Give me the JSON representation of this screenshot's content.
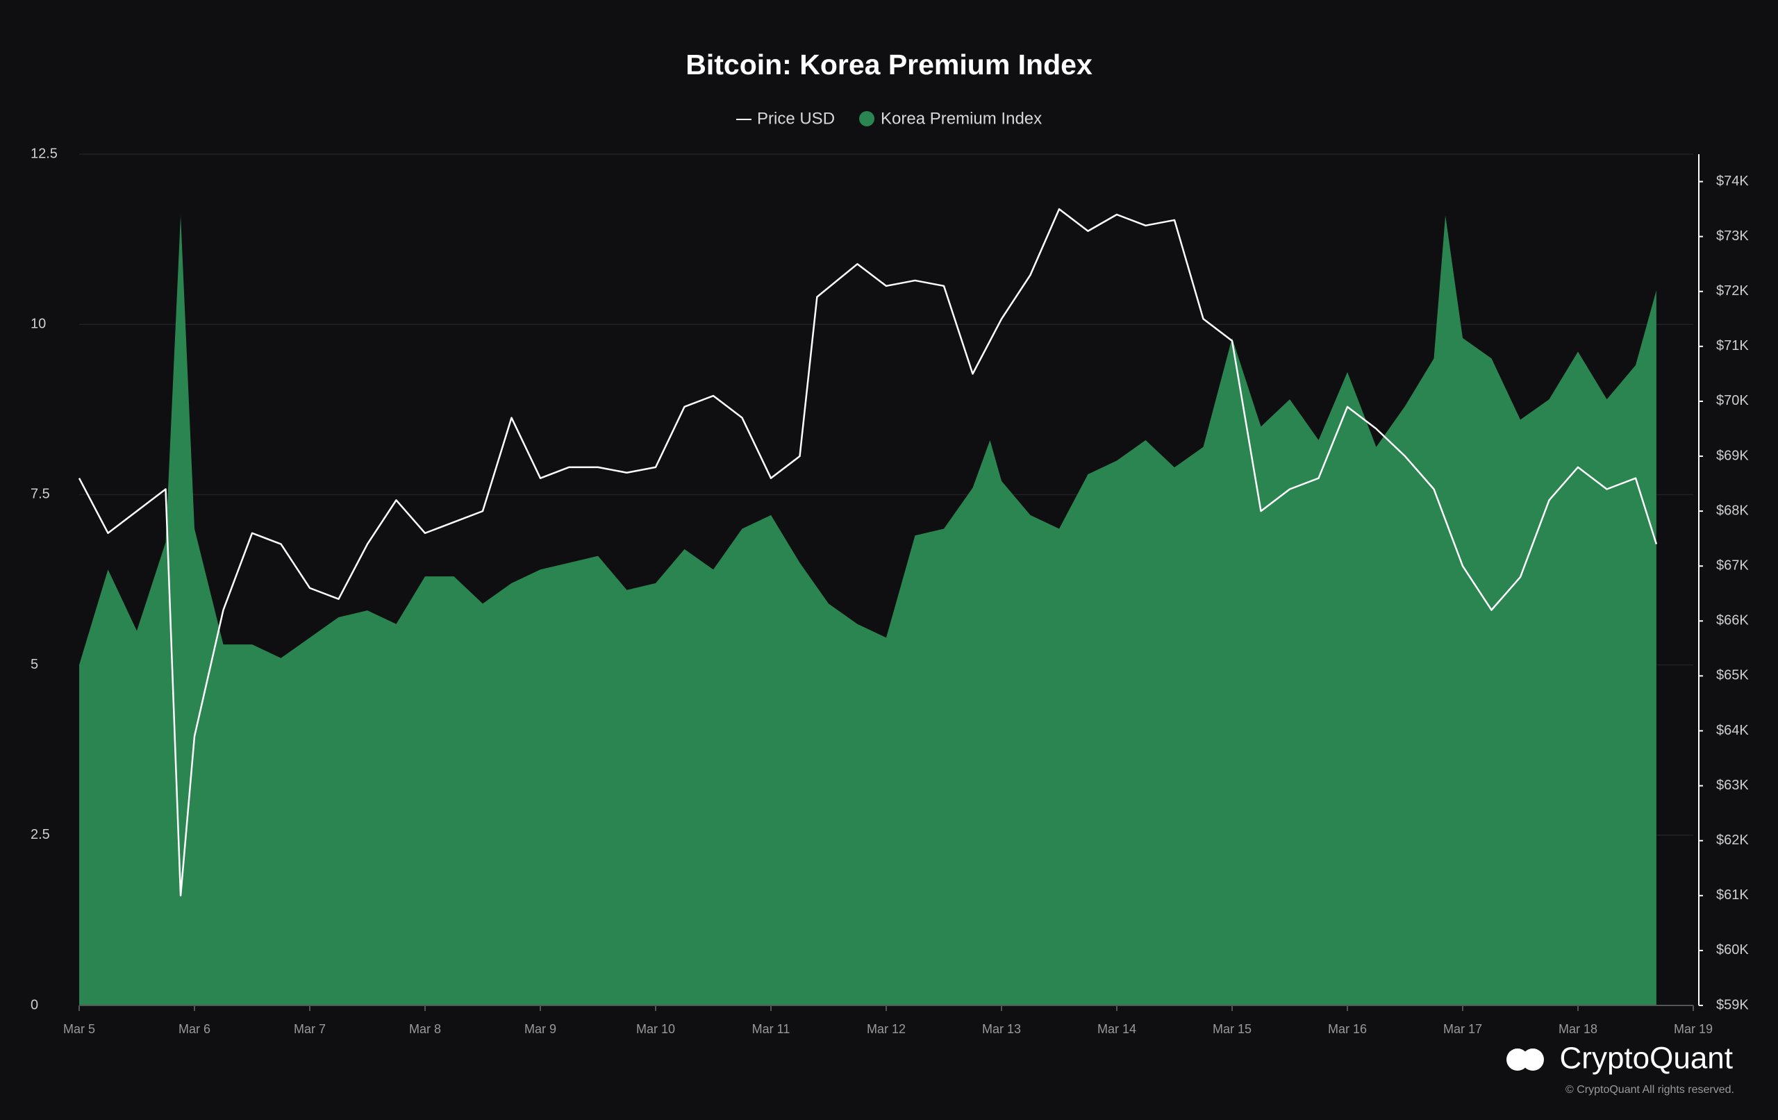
{
  "chart_data": {
    "type": "line",
    "title": "Bitcoin: Korea Premium Index",
    "xlim": [
      5,
      19
    ],
    "xticks": [
      {
        "value": 5,
        "label": "Mar 5"
      },
      {
        "value": 6,
        "label": "Mar 6"
      },
      {
        "value": 7,
        "label": "Mar 7"
      },
      {
        "value": 8,
        "label": "Mar 8"
      },
      {
        "value": 9,
        "label": "Mar 9"
      },
      {
        "value": 10,
        "label": "Mar 10"
      },
      {
        "value": 11,
        "label": "Mar 11"
      },
      {
        "value": 12,
        "label": "Mar 12"
      },
      {
        "value": 13,
        "label": "Mar 13"
      },
      {
        "value": 14,
        "label": "Mar 14"
      },
      {
        "value": 15,
        "label": "Mar 15"
      },
      {
        "value": 16,
        "label": "Mar 16"
      },
      {
        "value": 17,
        "label": "Mar 17"
      },
      {
        "value": 18,
        "label": "Mar 18"
      },
      {
        "value": 19,
        "label": "Mar 19"
      }
    ],
    "ylim": [
      0,
      12.5
    ],
    "yticks": [
      0,
      2.5,
      5,
      7.5,
      10,
      12.5
    ],
    "y2lim": [
      59,
      74.5
    ],
    "y2ticks": [
      {
        "value": 59,
        "label": "$59K"
      },
      {
        "value": 60,
        "label": "$60K"
      },
      {
        "value": 61,
        "label": "$61K"
      },
      {
        "value": 62,
        "label": "$62K"
      },
      {
        "value": 63,
        "label": "$63K"
      },
      {
        "value": 64,
        "label": "$64K"
      },
      {
        "value": 65,
        "label": "$65K"
      },
      {
        "value": 66,
        "label": "$66K"
      },
      {
        "value": 67,
        "label": "$67K"
      },
      {
        "value": 68,
        "label": "$68K"
      },
      {
        "value": 69,
        "label": "$69K"
      },
      {
        "value": 70,
        "label": "$70K"
      },
      {
        "value": 71,
        "label": "$71K"
      },
      {
        "value": 72,
        "label": "$72K"
      },
      {
        "value": 73,
        "label": "$73K"
      },
      {
        "value": 74,
        "label": "$74K"
      }
    ],
    "grid": true,
    "series": [
      {
        "name": "Price USD",
        "type": "line",
        "axis": "y2",
        "color": "#ffffff",
        "x": [
          5,
          5.25,
          5.5,
          5.75,
          5.88,
          6,
          6.25,
          6.5,
          6.75,
          7,
          7.25,
          7.5,
          7.75,
          8,
          8.25,
          8.5,
          8.75,
          9,
          9.25,
          9.5,
          9.75,
          10,
          10.25,
          10.5,
          10.75,
          11,
          11.25,
          11.4,
          11.75,
          12,
          12.25,
          12.5,
          12.75,
          13,
          13.25,
          13.5,
          13.75,
          14,
          14.25,
          14.5,
          14.75,
          15,
          15.25,
          15.5,
          15.75,
          16,
          16.25,
          16.5,
          16.75,
          17,
          17.25,
          17.5,
          17.75,
          18,
          18.25,
          18.5,
          18.68
        ],
        "values": [
          68.6,
          67.6,
          68.0,
          68.4,
          61.0,
          63.9,
          66.2,
          67.6,
          67.4,
          66.6,
          66.4,
          67.4,
          68.2,
          67.6,
          67.8,
          68.0,
          69.7,
          68.6,
          68.8,
          68.8,
          68.7,
          68.8,
          69.9,
          70.1,
          69.7,
          68.6,
          69.0,
          71.9,
          72.5,
          72.1,
          72.2,
          72.1,
          70.5,
          71.5,
          72.3,
          73.5,
          73.1,
          73.4,
          73.2,
          73.3,
          71.5,
          71.1,
          68.0,
          68.4,
          68.6,
          69.9,
          69.5,
          69.0,
          68.4,
          67.0,
          66.2,
          66.8,
          68.2,
          68.8,
          68.4,
          68.6,
          67.4
        ]
      },
      {
        "name": "Korea Premium Index",
        "type": "area",
        "color": "#2b8551",
        "x": [
          5,
          5.25,
          5.5,
          5.75,
          5.88,
          6,
          6.25,
          6.5,
          6.75,
          7,
          7.25,
          7.5,
          7.75,
          8,
          8.25,
          8.5,
          8.75,
          9,
          9.25,
          9.5,
          9.75,
          10,
          10.25,
          10.5,
          10.75,
          11,
          11.25,
          11.5,
          11.75,
          12,
          12.25,
          12.5,
          12.75,
          12.9,
          13,
          13.25,
          13.5,
          13.75,
          14,
          14.25,
          14.5,
          14.75,
          15,
          15.25,
          15.5,
          15.75,
          16,
          16.25,
          16.5,
          16.75,
          16.85,
          17,
          17.25,
          17.5,
          17.75,
          18,
          18.25,
          18.5,
          18.68
        ],
        "values": [
          5.0,
          6.4,
          5.5,
          6.8,
          11.6,
          7.0,
          5.3,
          5.3,
          5.1,
          5.4,
          5.7,
          5.8,
          5.6,
          6.3,
          6.3,
          5.9,
          6.2,
          6.4,
          6.5,
          6.6,
          6.1,
          6.2,
          6.7,
          6.4,
          7.0,
          7.2,
          6.5,
          5.9,
          5.6,
          5.4,
          6.9,
          7.0,
          7.6,
          8.3,
          7.7,
          7.2,
          7.0,
          7.8,
          8.0,
          8.3,
          7.9,
          8.2,
          9.8,
          8.5,
          8.9,
          8.3,
          9.3,
          8.2,
          8.8,
          9.5,
          11.6,
          9.8,
          9.5,
          8.6,
          8.9,
          9.6,
          8.9,
          9.4,
          10.5
        ]
      }
    ]
  },
  "brand": "CryptoQuant",
  "copyright": "© CryptoQuant All rights reserved."
}
